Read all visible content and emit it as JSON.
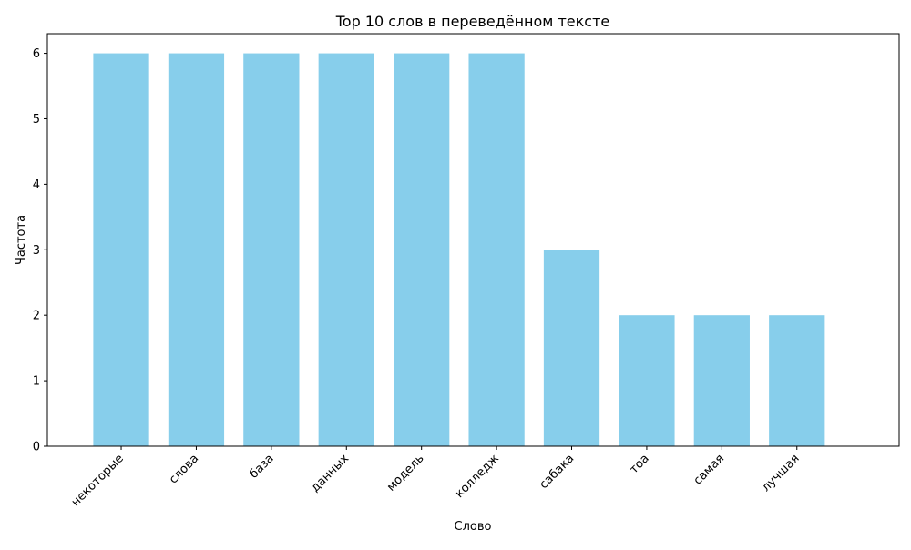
{
  "chart_data": {
    "type": "bar",
    "title": "Top 10 слов в переведённом тексте",
    "xlabel": "Слово",
    "ylabel": "Частота",
    "categories": [
      "некоторые",
      "слова",
      "база",
      "данных",
      "модель",
      "колледж",
      "сабака",
      "тоа",
      "самая",
      "лучшая"
    ],
    "values": [
      6,
      6,
      6,
      6,
      6,
      6,
      3,
      2,
      2,
      2
    ],
    "ylim": [
      0,
      6.3
    ],
    "yticks": [
      0,
      1,
      2,
      3,
      4,
      5,
      6
    ],
    "grid": false,
    "legend": "none",
    "bar_color": "#87CEEB",
    "x_tick_rotation": "45° right-aligned"
  }
}
